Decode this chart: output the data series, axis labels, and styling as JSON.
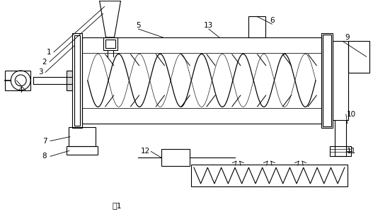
{
  "fig_width": 5.27,
  "fig_height": 3.03,
  "dpi": 100,
  "bg_color": "#ffffff",
  "line_color": "#000000",
  "title": "图1"
}
